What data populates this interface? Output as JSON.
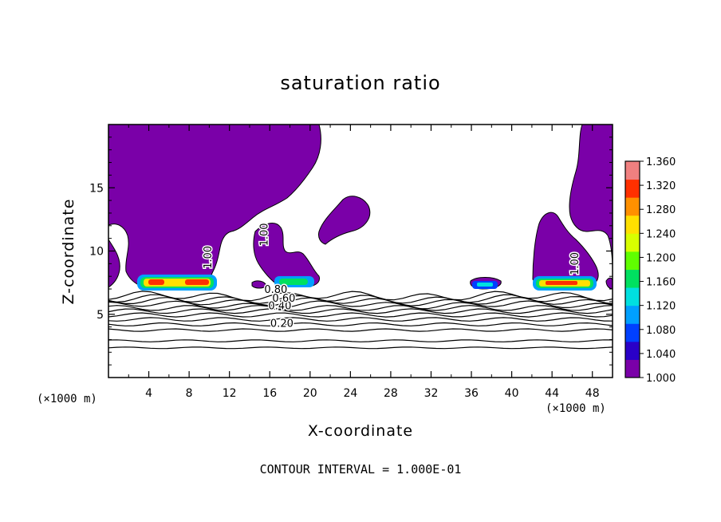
{
  "chart_data": {
    "type": "heatmap",
    "title": "saturation ratio",
    "xlabel": "X-coordinate",
    "ylabel": "Z-coordinate",
    "x_unit": "(×1000 m)",
    "xlim": [
      0,
      50
    ],
    "ylim": [
      0,
      20
    ],
    "x_ticks": [
      4,
      8,
      12,
      16,
      20,
      24,
      28,
      32,
      36,
      40,
      44,
      48
    ],
    "y_ticks": [
      5,
      10,
      15
    ],
    "footer": "CONTOUR INTERVAL = 1.000E-01",
    "colorbar": {
      "min": 1.0,
      "max": 1.36,
      "labels": [
        "1.360",
        "1.320",
        "1.280",
        "1.240",
        "1.200",
        "1.160",
        "1.120",
        "1.080",
        "1.040",
        "1.000"
      ],
      "colors": [
        "#7a00a8",
        "#2a00c8",
        "#0040ff",
        "#00a0ff",
        "#00e0e0",
        "#00e060",
        "#60ff00",
        "#d8ff00",
        "#ffe000",
        "#ff9000",
        "#ff3000",
        "#f08080"
      ]
    },
    "contour_labels": [
      {
        "text": "0.20",
        "x": 17.2,
        "z": 4.0
      },
      {
        "text": "0.40",
        "x": 17.0,
        "z": 5.4
      },
      {
        "text": "0.60",
        "x": 17.4,
        "z": 6.0
      },
      {
        "text": "0.80",
        "x": 16.6,
        "z": 6.7
      },
      {
        "text": "1.00",
        "x": 10.2,
        "z": 9.5
      },
      {
        "text": "1.00",
        "x": 15.8,
        "z": 11.3
      },
      {
        "text": "1.00",
        "x": 46.6,
        "z": 9.0
      }
    ],
    "contour_levels_z": [
      2.35,
      2.9,
      3.75,
      4.2,
      4.6,
      4.95,
      5.25,
      5.5,
      5.75,
      6.0,
      6.2,
      6.45
    ]
  }
}
